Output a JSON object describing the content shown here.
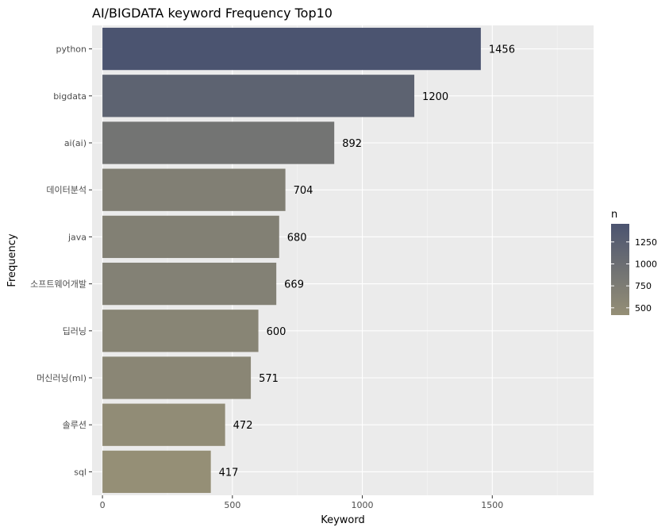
{
  "chart_data": {
    "type": "bar",
    "orientation": "horizontal",
    "title": "AI/BIGDATA keyword Frequency Top10",
    "xlabel": "Keyword",
    "ylabel": "Frequency",
    "categories": [
      "python",
      "bigdata",
      "ai(ai)",
      "데이터분석",
      "java",
      "소프트웨어개발",
      "딥러닝",
      "머신러닝(ml)",
      "솔루션",
      "sql"
    ],
    "values": [
      1456,
      1200,
      892,
      704,
      680,
      669,
      600,
      571,
      472,
      417
    ],
    "xlim": [
      -40,
      1890
    ],
    "x_ticks": [
      0,
      500,
      1000,
      1500
    ],
    "grid": true,
    "legend": {
      "title": "n",
      "position": "right",
      "ticks": [
        500,
        750,
        1000,
        1250
      ],
      "range": [
        417,
        1456
      ],
      "color_low": "#958f76",
      "color_high": "#4b5470"
    },
    "colors": {
      "panel": "#ebebeb",
      "grid_major": "#ffffff",
      "grid_minor": "#f5f5f5"
    }
  }
}
